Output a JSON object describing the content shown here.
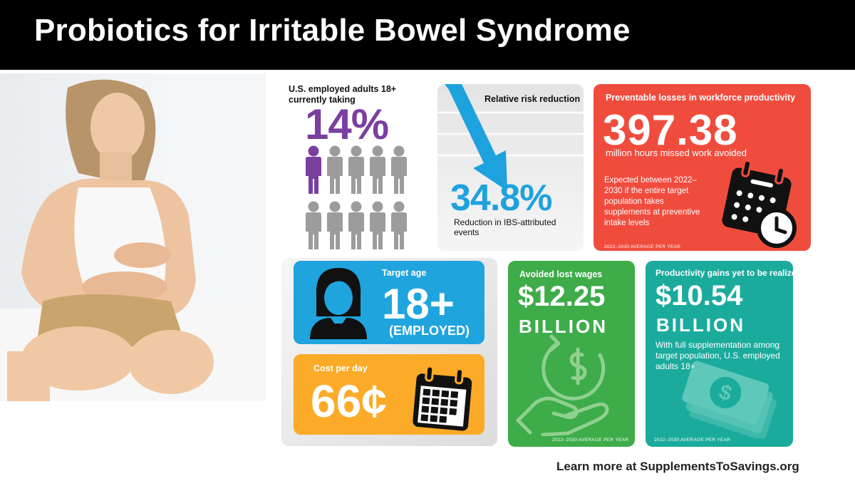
{
  "title": "Probiotics for Irritable Bowel Syndrome",
  "usage": {
    "label": "U.S. employed adults 18+ currently taking",
    "value": "14%",
    "fraction": 0.14,
    "color": "#7b3fa0"
  },
  "risk": {
    "label": "Relative risk reduction",
    "value": "34.8%",
    "note": "Reduction in IBS-attributed events",
    "color": "#1ea2de"
  },
  "productivity": {
    "label": "Preventable losses in workforce productivity",
    "value": "397.38",
    "subtitle": "million hours missed work avoided",
    "note": "Expected between 2022–2030 if the entire target population takes supplements at preventive intake levels",
    "footnote": "2022–2030 AVERAGE PER YEAR",
    "color": "#f04c3e"
  },
  "target_age": {
    "label": "Target age",
    "value": "18+",
    "subtitle": "(EMPLOYED)",
    "color": "#1fa4de"
  },
  "cost": {
    "label": "Cost per day",
    "value": "66¢",
    "color": "#fbab27"
  },
  "wages": {
    "label": "Avoided lost wages",
    "value": "$12.25",
    "unit": "BILLION",
    "footnote": "2022–2030 AVERAGE PER YEAR",
    "color": "#3eac49"
  },
  "gains": {
    "label": "Productivity gains yet to be realized",
    "value": "$10.54",
    "unit": "BILLION",
    "note": "With full supplementation among target population, U.S. employed adults 18+",
    "footnote": "2022–2030 AVERAGE PER YEAR",
    "color": "#1bab9d"
  },
  "footer": {
    "prefix": "Learn more at ",
    "site": "SupplementsToSavings.org"
  },
  "icons": {
    "people": "person-icon",
    "arrow": "down-arrow-icon",
    "calendar_clock": "calendar-clock-icon",
    "woman": "woman-avatar-icon",
    "calendar": "calendar-icon",
    "money_hand": "hand-dollar-icon",
    "cash": "banknote-icon"
  }
}
